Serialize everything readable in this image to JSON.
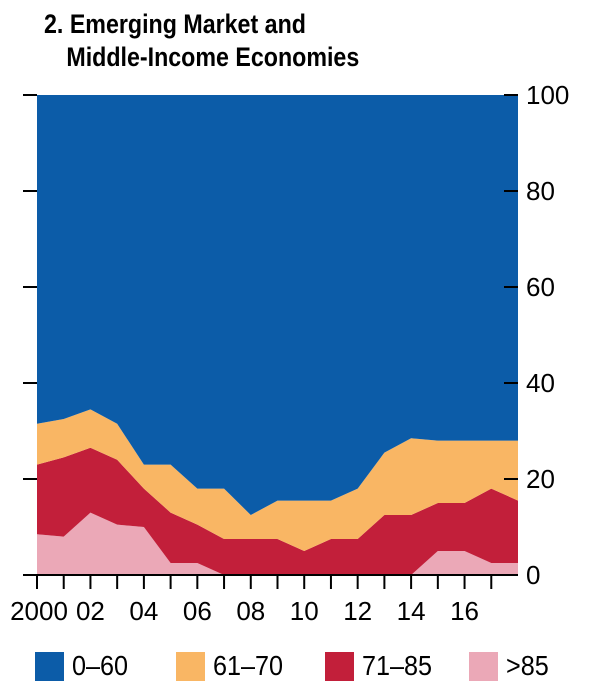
{
  "chart_data": {
    "type": "area",
    "stacked": true,
    "title": "2. Emerging Market and",
    "subtitle": "Middle-Income Economies",
    "x": [
      2000,
      2001,
      2002,
      2003,
      2004,
      2005,
      2006,
      2007,
      2008,
      2009,
      2010,
      2011,
      2012,
      2013,
      2014,
      2015,
      2016,
      2017,
      2018
    ],
    "x_tick_labels": [
      {
        "x": 2000,
        "label": "2000"
      },
      {
        "x": 2002,
        "label": "02"
      },
      {
        "x": 2004,
        "label": "04"
      },
      {
        "x": 2006,
        "label": "06"
      },
      {
        "x": 2008,
        "label": "08"
      },
      {
        "x": 2010,
        "label": "10"
      },
      {
        "x": 2012,
        "label": "12"
      },
      {
        "x": 2014,
        "label": "14"
      },
      {
        "x": 2016,
        "label": "16"
      }
    ],
    "xlim": [
      2000,
      2018
    ],
    "ylim": [
      0,
      100
    ],
    "y_ticks": [
      0,
      20,
      40,
      60,
      80,
      100
    ],
    "y_axis_side": "right",
    "grid": false,
    "legend_position": "bottom",
    "series": [
      {
        "name": ">85",
        "color": "#eba8b7",
        "values": [
          8.5,
          8,
          13,
          10.5,
          10,
          2.5,
          2.5,
          0,
          0,
          0,
          0,
          0,
          0,
          0,
          0,
          5,
          5,
          2.5,
          2.5
        ]
      },
      {
        "name": "71–85",
        "color": "#c21f3a",
        "values": [
          14.5,
          16.5,
          13.5,
          13.5,
          8,
          10.5,
          8,
          7.5,
          7.5,
          7.5,
          5,
          7.5,
          7.5,
          12.5,
          12.5,
          10,
          10,
          15.5,
          13
        ]
      },
      {
        "name": "61–70",
        "color": "#f9b664",
        "values": [
          8.5,
          8,
          8,
          7.5,
          5,
          10,
          7.5,
          10.5,
          5,
          8,
          10.5,
          8,
          10.5,
          13,
          16,
          13,
          13,
          10,
          12.5
        ]
      },
      {
        "name": "0–60",
        "color": "#0c5ca8",
        "values": [
          68.5,
          67.5,
          65.5,
          68.5,
          77,
          77,
          82,
          82,
          87.5,
          84.5,
          84.5,
          84.5,
          82,
          74.5,
          71.5,
          72,
          72,
          72,
          72
        ]
      }
    ],
    "legend_order": [
      "0–60",
      "61–70",
      "71–85",
      ">85"
    ]
  }
}
